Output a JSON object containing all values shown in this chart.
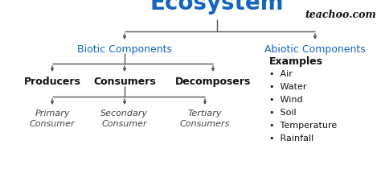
{
  "title": "Ecosystem",
  "title_color": "#1565c0",
  "title_fontsize": 20,
  "title_weight": "bold",
  "watermark": "teachoo.com",
  "watermark_color": "#111111",
  "watermark_fontsize": 9,
  "biotic_label": "Biotic Components",
  "abiotic_label": "Abiotic Components",
  "component_color": "#1565c0",
  "component_fontsize": 9,
  "producers_label": "Producers",
  "consumers_label": "Consumers",
  "decomposers_label": "Decomposers",
  "level2_color": "#111111",
  "level2_fontsize": 9,
  "level2_weight": "bold",
  "primary_label": "Primary\nConsumer",
  "secondary_label": "Secondary\nConsumer",
  "tertiary_label": "Tertiary\nConsumers",
  "level3_color": "#444444",
  "level3_fontsize": 8,
  "level3_style": "italic",
  "examples_title": "Examples",
  "examples_items": [
    "Air",
    "Water",
    "Wind",
    "Soil",
    "Temperature",
    "Rainfall"
  ],
  "examples_fontsize": 8,
  "bg_color": "#ffffff",
  "line_color": "#555555",
  "line_width": 1.0
}
